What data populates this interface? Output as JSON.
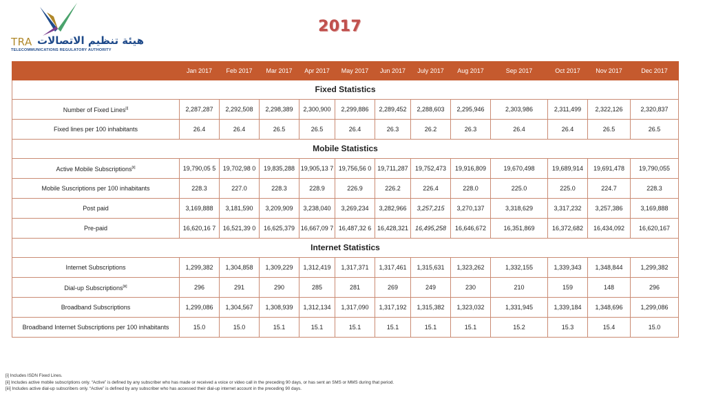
{
  "logo": {
    "abbr": "TRA",
    "arabic_name": "هيئة تنظيم الاتصالات",
    "authority_name": "TELECOMMUNICATIONS REGULATORY AUTHORITY"
  },
  "year": "2017",
  "months": [
    "Jan 2017",
    "Feb 2017",
    "Mar 2017",
    "Apr 2017",
    "May 2017",
    "Jun 2017",
    "July 2017",
    "Aug 2017",
    "Sep 2017",
    "Oct 2017",
    "Nov 2017",
    "Dec 2017"
  ],
  "sections": {
    "fixed": "Fixed Statistics",
    "mobile": "Mobile Statistics",
    "internet": "Internet  Statistics"
  },
  "rows": {
    "fixed_lines": {
      "label": "Number of  Fixed Lines",
      "note": "[i]",
      "values": [
        "2,287,287",
        "2,292,508",
        "2,298,389",
        "2,300,900",
        "2,299,886",
        "2,289,452",
        "2,288,603",
        "2,295,946",
        "2,303,986",
        "2,311,499",
        "2,322,126",
        "2,320,837"
      ]
    },
    "fixed_per100": {
      "label": "Fixed lines per 100 inhabitants",
      "values": [
        "26.4",
        "26.4",
        "26.5",
        "26.5",
        "26.4",
        "26.3",
        "26.2",
        "26.3",
        "26.4",
        "26.4",
        "26.5",
        "26.5"
      ]
    },
    "mobile_active": {
      "label": "Active Mobile Subscriptions",
      "note": "[ii]",
      "values": [
        "19,790,05 5",
        "19,702,98 0",
        "19,835,288",
        "19,905,13 7",
        "19,756,56 0",
        "19,711,287",
        "19,752,473",
        "19,916,809",
        "19,670,498",
        "19,689,914",
        "19,691,478",
        "19,790,055"
      ]
    },
    "mobile_per100": {
      "label": "Mobile Suscriptions per 100 inhabitants",
      "values": [
        "228.3",
        "227.0",
        "228.3",
        "228.9",
        "226.9",
        "226.2",
        "226.4",
        "228.0",
        "225.0",
        "225.0",
        "224.7",
        "228.3"
      ]
    },
    "postpaid": {
      "label": "Post paid",
      "values": [
        "3,169,888",
        "3,181,590",
        "3,209,909",
        "3,238,040",
        "3,269,234",
        "3,282,966",
        "3,257,215",
        "3,270,137",
        "3,318,629",
        "3,317,232",
        "3,257,386",
        "3,169,888"
      ]
    },
    "prepaid": {
      "label": "Pre-paid",
      "values": [
        "16,620,16 7",
        "16,521,39 0",
        "16,625,379",
        "16,667,09 7",
        "16,487,32 6",
        "16,428,321",
        "16,495,258",
        "16,646,672",
        "16,351,869",
        "16,372,682",
        "16,434,092",
        "16,620,167"
      ]
    },
    "internet_subs": {
      "label": "Internet Subscriptions",
      "values": [
        "1,299,382",
        "1,304,858",
        "1,309,229",
        "1,312,419",
        "1,317,371",
        "1,317,461",
        "1,315,631",
        "1,323,262",
        "1,332,155",
        "1,339,343",
        "1,348,844",
        "1,299,382"
      ]
    },
    "dialup": {
      "label": "Dial-up Subscriptions",
      "note": "[iii]",
      "values": [
        "296",
        "291",
        "290",
        "285",
        "281",
        "269",
        "249",
        "230",
        "210",
        "159",
        "148",
        "296"
      ]
    },
    "broadband": {
      "label": "Broadband Subscriptions",
      "values": [
        "1,299,086",
        "1,304,567",
        "1,308,939",
        "1,312,134",
        "1,317,090",
        "1,317,192",
        "1,315,382",
        "1,323,032",
        "1,331,945",
        "1,339,184",
        "1,348,696",
        "1,299,086"
      ]
    },
    "broadband_per100": {
      "label": "Broadband Internet Subscriptions per 100 inhabitants",
      "values": [
        "15.0",
        "15.0",
        "15.1",
        "15.1",
        "15.1",
        "15.1",
        "15.1",
        "15.1",
        "15.2",
        "15.3",
        "15.4",
        "15.0"
      ]
    }
  },
  "footnotes": [
    "[i] Includes ISDN Fixed Lines.",
    "[ii] Includes active mobile subscriptions only.  “Active” is defined by any subscriber who has made or received a voice or video call in the preceding 90 days, or has sent an SMS or MMS during that period.",
    "[iii] Includes active dial-up subscribers only.  “Active” is defined by any subscriber who has accessed their dial-up internet account in the preceding 90 days."
  ],
  "colors": {
    "header_bg": "#c55a2e",
    "border": "#c98a72",
    "year_text": "#c0504d",
    "logo_blue": "#1f4a8a",
    "logo_gold": "#b0882a"
  }
}
